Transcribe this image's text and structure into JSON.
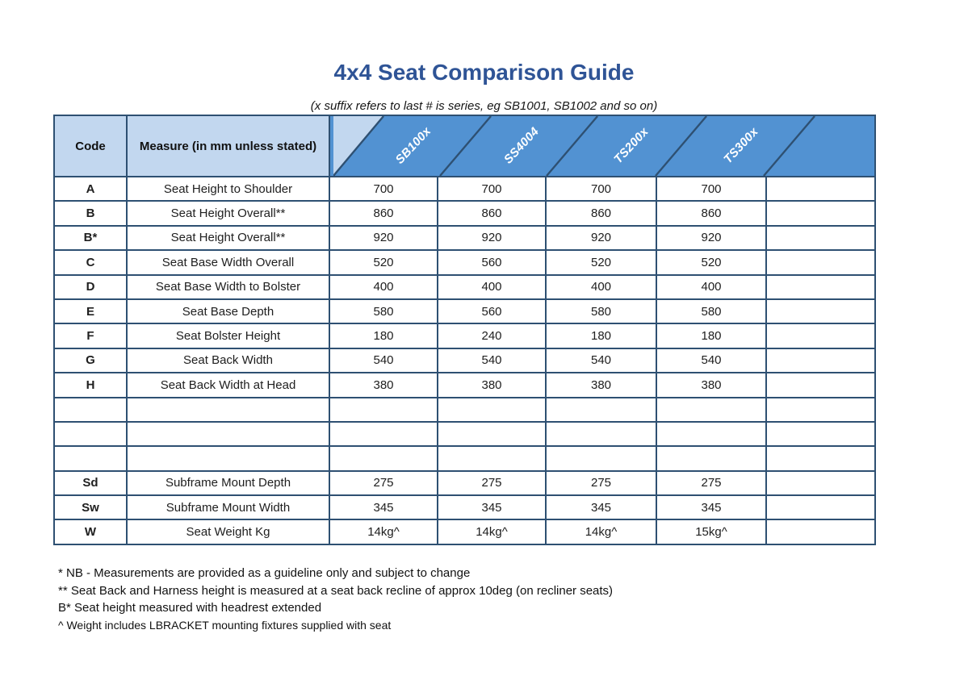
{
  "page": {
    "title": "4x4 Seat Comparison Guide",
    "subtitle": "(x suffix refers to last # is series, eg SB1001, SB1002 and so on)"
  },
  "table": {
    "code_header": "Code",
    "measure_header": "Measure (in mm unless stated)",
    "product_columns": [
      "SB100x",
      "SS4004",
      "TS200x",
      "TS300x"
    ],
    "rows": [
      {
        "code": "A",
        "measure": "Seat Height to Shoulder",
        "values": [
          "700",
          "700",
          "700",
          "700"
        ]
      },
      {
        "code": "B",
        "measure": "Seat Height Overall**",
        "values": [
          "860",
          "860",
          "860",
          "860"
        ]
      },
      {
        "code": "B*",
        "measure": "Seat Height Overall**",
        "values": [
          "920",
          "920",
          "920",
          "920"
        ]
      },
      {
        "code": "C",
        "measure": "Seat Base Width Overall",
        "values": [
          "520",
          "560",
          "520",
          "520"
        ]
      },
      {
        "code": "D",
        "measure": "Seat Base Width to Bolster",
        "values": [
          "400",
          "400",
          "400",
          "400"
        ]
      },
      {
        "code": "E",
        "measure": "Seat Base Depth",
        "values": [
          "580",
          "560",
          "580",
          "580"
        ]
      },
      {
        "code": "F",
        "measure": "Seat Bolster Height",
        "values": [
          "180",
          "240",
          "180",
          "180"
        ]
      },
      {
        "code": "G",
        "measure": "Seat Back Width",
        "values": [
          "540",
          "540",
          "540",
          "540"
        ]
      },
      {
        "code": "H",
        "measure": "Seat Back Width at Head",
        "values": [
          "380",
          "380",
          "380",
          "380"
        ]
      },
      {
        "code": "",
        "measure": "",
        "values": [
          "",
          "",
          "",
          ""
        ]
      },
      {
        "code": "",
        "measure": "",
        "values": [
          "",
          "",
          "",
          ""
        ]
      },
      {
        "code": "",
        "measure": "",
        "values": [
          "",
          "",
          "",
          ""
        ]
      },
      {
        "code": "Sd",
        "measure": "Subframe Mount Depth",
        "values": [
          "275",
          "275",
          "275",
          "275"
        ]
      },
      {
        "code": "Sw",
        "measure": "Subframe Mount Width",
        "values": [
          "345",
          "345",
          "345",
          "345"
        ]
      },
      {
        "code": "W",
        "measure": "Seat Weight Kg",
        "values": [
          "14kg^",
          "14kg^",
          "14kg^",
          "15kg^"
        ]
      }
    ]
  },
  "footnotes": [
    "* NB - Measurements are provided as a guideline only and subject to change",
    "** Seat Back and Harness height is measured at a seat back recline of approx 10deg (on recliner seats)",
    "B* Seat height measured with headrest extended",
    "^ Weight includes LBRACKET mounting fixtures supplied with seat"
  ],
  "colors": {
    "header_light_blue": "#c2d7ef",
    "header_dark_blue": "#5292d2",
    "grid_border": "#2e5072",
    "title_text": "#2f5496"
  }
}
